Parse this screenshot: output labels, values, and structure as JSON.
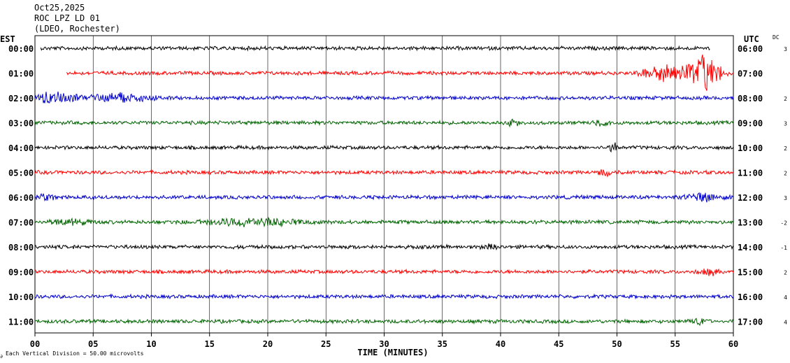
{
  "header": {
    "date": "Oct25,2025",
    "station": "ROC LPZ LD 01",
    "network": "(LDEO, Rochester)"
  },
  "chart_data": {
    "type": "line",
    "title": "ROC LPZ LD 01",
    "left_axis_label": "EST",
    "right_axis_label": "UTC",
    "dc_label": "DC",
    "xlabel": "TIME (MINUTES)",
    "xlim": [
      0,
      60
    ],
    "x_ticks": [
      "00",
      "05",
      "10",
      "15",
      "20",
      "25",
      "30",
      "35",
      "40",
      "45",
      "50",
      "55",
      "60"
    ],
    "footnote": "Each Vertical Division =   50.00 microvolts",
    "grid": true,
    "colors": [
      "#000000",
      "#ff0000",
      "#0000cc",
      "#006400"
    ],
    "rows": [
      {
        "est": "00:00",
        "utc": "06:00",
        "dc": "3",
        "color": "#000000",
        "amp": 3,
        "start": 0.5,
        "end": 58,
        "events": []
      },
      {
        "est": "01:00",
        "utc": "07:00",
        "dc": "",
        "color": "#ff0000",
        "amp": 3,
        "start": 2.7,
        "end": 60,
        "events": [
          {
            "t": 57.3,
            "amp": 32,
            "width": 2.5
          },
          {
            "t": 54,
            "amp": 14,
            "width": 3
          }
        ]
      },
      {
        "est": "02:00",
        "utc": "08:00",
        "dc": "2",
        "color": "#0000cc",
        "amp": 3,
        "start": 0,
        "end": 60,
        "events": [
          {
            "t": 1.5,
            "amp": 10,
            "width": 3
          },
          {
            "t": 7,
            "amp": 8,
            "width": 5
          }
        ]
      },
      {
        "est": "03:00",
        "utc": "09:00",
        "dc": "3",
        "color": "#006400",
        "amp": 3,
        "start": 0,
        "end": 60,
        "events": [
          {
            "t": 41,
            "amp": 5,
            "width": 1
          },
          {
            "t": 48.7,
            "amp": 5,
            "width": 1
          }
        ]
      },
      {
        "est": "04:00",
        "utc": "10:00",
        "dc": "2",
        "color": "#000000",
        "amp": 3,
        "start": 0,
        "end": 60,
        "events": [
          {
            "t": 49.7,
            "amp": 7,
            "width": 0.8
          }
        ]
      },
      {
        "est": "05:00",
        "utc": "11:00",
        "dc": "2",
        "color": "#ff0000",
        "amp": 3,
        "start": 0,
        "end": 60,
        "events": [
          {
            "t": 49,
            "amp": 5,
            "width": 1
          }
        ]
      },
      {
        "est": "06:00",
        "utc": "12:00",
        "dc": "3",
        "color": "#0000cc",
        "amp": 3,
        "start": 0,
        "end": 60,
        "events": [
          {
            "t": 1,
            "amp": 5,
            "width": 1.5
          },
          {
            "t": 57.5,
            "amp": 6,
            "width": 3
          }
        ]
      },
      {
        "est": "07:00",
        "utc": "13:00",
        "dc": "-2",
        "color": "#006400",
        "amp": 3,
        "start": 0,
        "end": 60,
        "events": [
          {
            "t": 18.5,
            "amp": 7,
            "width": 7
          },
          {
            "t": 3,
            "amp": 5,
            "width": 3
          }
        ]
      },
      {
        "est": "08:00",
        "utc": "14:00",
        "dc": "-1",
        "color": "#000000",
        "amp": 3,
        "start": 0,
        "end": 60,
        "events": [
          {
            "t": 39,
            "amp": 4,
            "width": 1
          }
        ]
      },
      {
        "est": "09:00",
        "utc": "15:00",
        "dc": "2",
        "color": "#ff0000",
        "amp": 3,
        "start": 0,
        "end": 60,
        "events": [
          {
            "t": 58,
            "amp": 5,
            "width": 1.5
          }
        ]
      },
      {
        "est": "10:00",
        "utc": "16:00",
        "dc": "4",
        "color": "#0000cc",
        "amp": 3,
        "start": 0,
        "end": 60,
        "events": []
      },
      {
        "est": "11:00",
        "utc": "17:00",
        "dc": "4",
        "color": "#006400",
        "amp": 3,
        "start": 0,
        "end": 60,
        "events": [
          {
            "t": 57,
            "amp": 4,
            "width": 1
          }
        ]
      }
    ]
  }
}
